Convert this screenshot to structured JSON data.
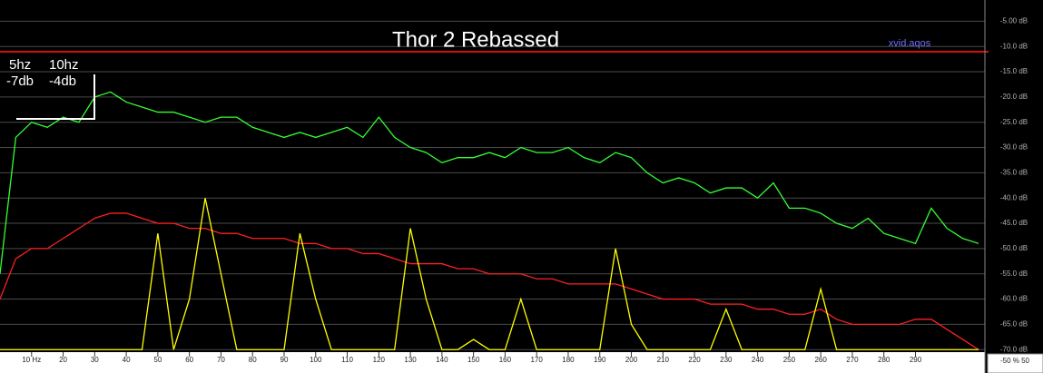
{
  "chart_data": {
    "type": "line",
    "title": "Thor 2 Rebassed",
    "annotations": [
      "5hz",
      "-7db",
      "10hz",
      "-4db",
      "xvid.aqos"
    ],
    "footer": "-50 % 50",
    "x": [
      0,
      5,
      10,
      15,
      20,
      25,
      30,
      35,
      40,
      45,
      50,
      55,
      60,
      65,
      70,
      75,
      80,
      85,
      90,
      95,
      100,
      105,
      110,
      115,
      120,
      125,
      130,
      135,
      140,
      145,
      150,
      155,
      160,
      165,
      170,
      175,
      180,
      185,
      190,
      195,
      200,
      205,
      210,
      215,
      220,
      225,
      230,
      235,
      240,
      245,
      250,
      255,
      260,
      265,
      270,
      275,
      280,
      285,
      290,
      295,
      300,
      305,
      310
    ],
    "series": [
      {
        "name": "green",
        "color": "#33ff33",
        "values": [
          -55,
          -28,
          -25,
          -26,
          -24,
          -25,
          -20,
          -19,
          -21,
          -22,
          -23,
          -23,
          -24,
          -25,
          -24,
          -24,
          -26,
          -27,
          -28,
          -27,
          -28,
          -27,
          -26,
          -28,
          -24,
          -28,
          -30,
          -31,
          -33,
          -32,
          -32,
          -31,
          -32,
          -30,
          -31,
          -31,
          -30,
          -32,
          -33,
          -31,
          -32,
          -35,
          -37,
          -36,
          -37,
          -39,
          -38,
          -38,
          -40,
          -37,
          -42,
          -42,
          -43,
          -45,
          -46,
          -44,
          -47,
          -48,
          -49,
          -42,
          -46,
          -48,
          -49
        ]
      },
      {
        "name": "red",
        "color": "#ff2020",
        "values": [
          -60,
          -52,
          -50,
          -50,
          -48,
          -46,
          -44,
          -43,
          -43,
          -44,
          -45,
          -45,
          -46,
          -46,
          -47,
          -47,
          -48,
          -48,
          -48,
          -49,
          -49,
          -50,
          -50,
          -51,
          -51,
          -52,
          -53,
          -53,
          -53,
          -54,
          -54,
          -55,
          -55,
          -55,
          -56,
          -56,
          -57,
          -57,
          -57,
          -57,
          -58,
          -59,
          -60,
          -60,
          -60,
          -61,
          -61,
          -61,
          -62,
          -62,
          -63,
          -63,
          -62,
          -64,
          -65,
          -65,
          -65,
          -65,
          -64,
          -64,
          -66,
          -68,
          -70
        ]
      },
      {
        "name": "yellow",
        "color": "#ffff00",
        "values": [
          -70,
          -70,
          -70,
          -70,
          -70,
          -70,
          -70,
          -70,
          -70,
          -70,
          -47,
          -70,
          -60,
          -40,
          -55,
          -70,
          -70,
          -70,
          -70,
          -47,
          -60,
          -70,
          -70,
          -70,
          -70,
          -70,
          -46,
          -60,
          -70,
          -70,
          -68,
          -70,
          -70,
          -60,
          -70,
          -70,
          -70,
          -70,
          -70,
          -50,
          -65,
          -70,
          -70,
          -70,
          -70,
          -70,
          -62,
          -70,
          -70,
          -70,
          -70,
          -70,
          -58,
          -70,
          -70,
          -70,
          -70,
          -70,
          -70,
          -70,
          -70,
          -70,
          -70
        ]
      }
    ],
    "xlim": [
      0,
      312
    ],
    "ylim": [
      -70.5,
      -0.8
    ],
    "xticks": [
      {
        "value": 10,
        "label": "10 Hz"
      },
      20,
      30,
      40,
      50,
      60,
      70,
      80,
      90,
      100,
      110,
      120,
      130,
      140,
      150,
      160,
      170,
      180,
      190,
      200,
      210,
      220,
      230,
      240,
      250,
      260,
      270,
      280,
      290
    ],
    "yticks": [
      {
        "value": -5,
        "label": "-5.00 dB"
      },
      {
        "value": -10,
        "label": "-10.0 dB"
      },
      {
        "value": -15,
        "label": "-15.0 dB"
      },
      {
        "value": -20,
        "label": "-20.0 dB"
      },
      {
        "value": -25,
        "label": "-25.0 dB"
      },
      {
        "value": -30,
        "label": "-30.0 dB"
      },
      {
        "value": -35,
        "label": "-35.0 dB"
      },
      {
        "value": -40,
        "label": "-40.0 dB"
      },
      {
        "value": -45,
        "label": "-45.0 dB"
      },
      {
        "value": -50,
        "label": "-50.0 dB"
      },
      {
        "value": -55,
        "label": "-55.0 dB"
      },
      {
        "value": -60,
        "label": "-60.0 dB"
      },
      {
        "value": -65,
        "label": "-65.0 dB"
      },
      {
        "value": -70,
        "label": "-70.0 dB"
      }
    ],
    "grid": true
  }
}
